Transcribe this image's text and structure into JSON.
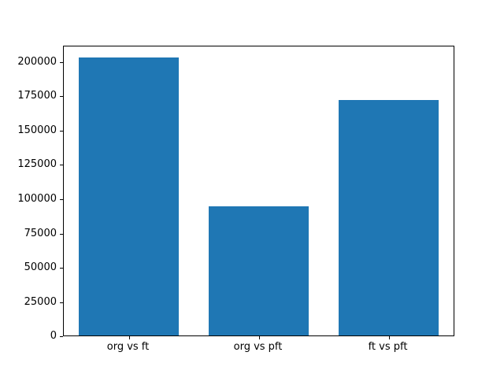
{
  "figure": {
    "background": "#ffffff"
  },
  "chart_data": {
    "type": "bar",
    "categories": [
      "org vs ft",
      "org vs pft",
      "ft vs pft"
    ],
    "values": [
      204000,
      95000,
      173000
    ],
    "title": "",
    "xlabel": "",
    "ylabel": "",
    "ylim": [
      0,
      212000
    ],
    "yticks": [
      0,
      25000,
      50000,
      75000,
      100000,
      125000,
      150000,
      175000,
      200000
    ],
    "bar_color": "#1f77b4",
    "axis_color": "#000000",
    "grid": false,
    "legend": "none"
  }
}
